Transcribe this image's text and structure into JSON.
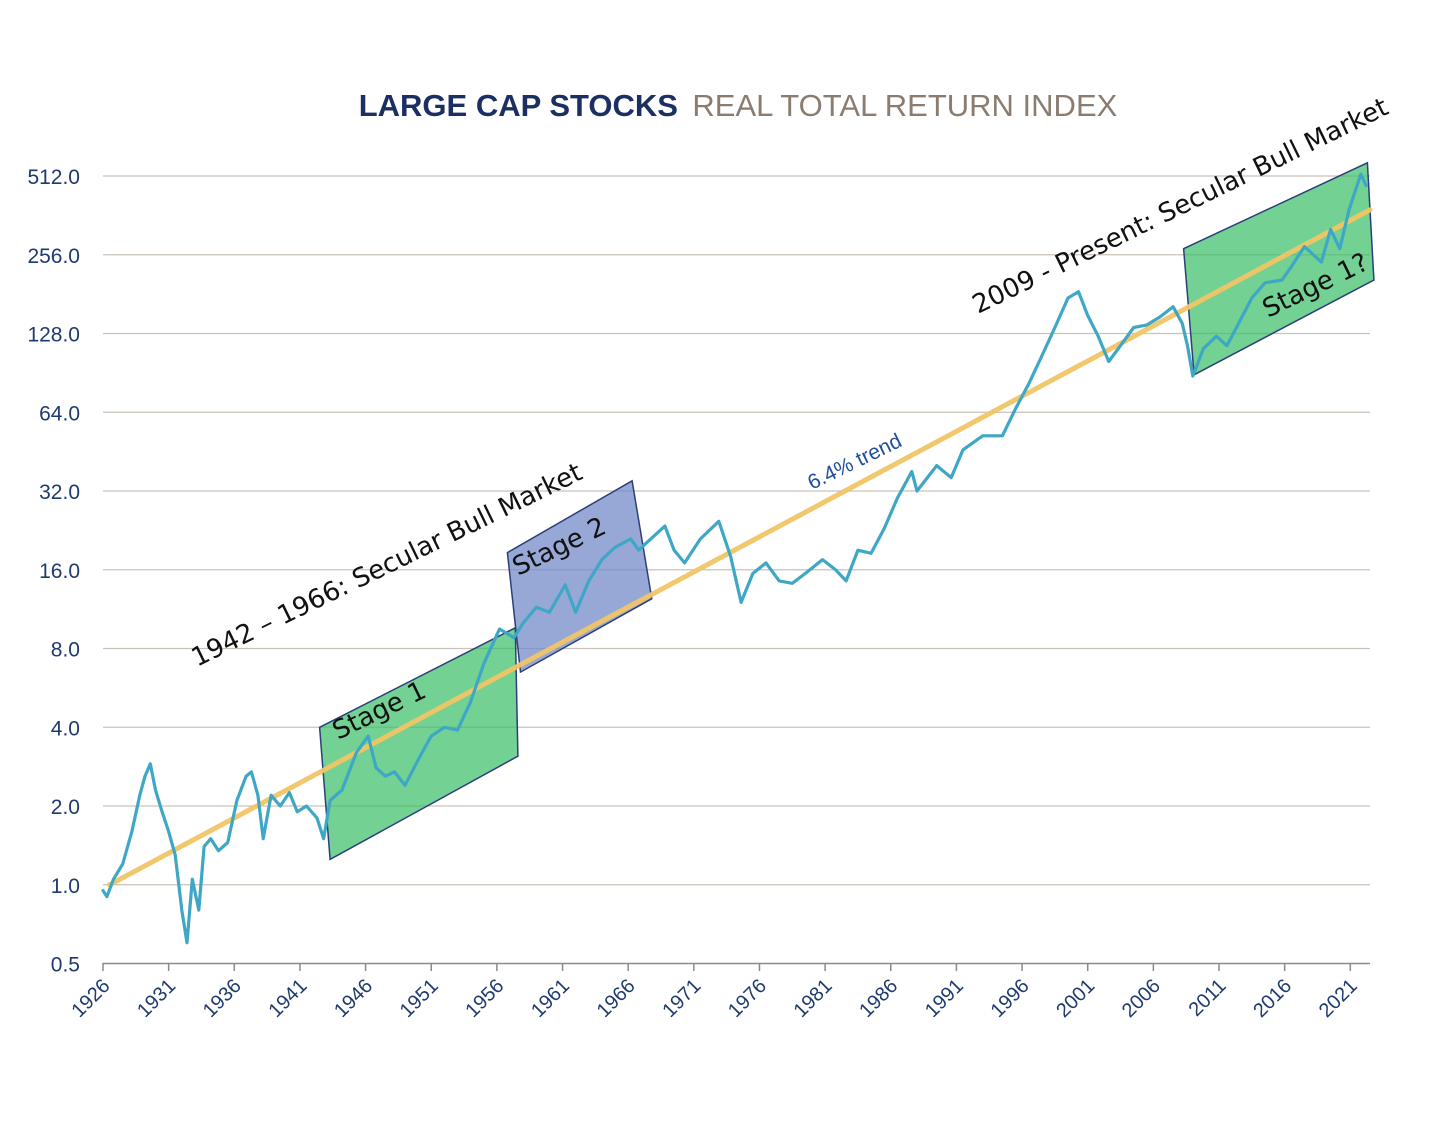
{
  "chart_data": {
    "type": "line",
    "title": "LARGE CAP STOCKS",
    "subtitle": "REAL TOTAL RETURN INDEX",
    "xlabel": "",
    "ylabel": "",
    "y_scale": "log2",
    "ylim": [
      0.5,
      600
    ],
    "xlim": [
      1926,
      2022.5
    ],
    "y_ticks": [
      "512.0",
      "256.0",
      "128.0",
      "64.0",
      "32.0",
      "16.0",
      "8.0",
      "4.0",
      "2.0",
      "1.0",
      "0.5"
    ],
    "x_ticks": [
      "1926",
      "1931",
      "1936",
      "1941",
      "1946",
      "1951",
      "1956",
      "1961",
      "1966",
      "1971",
      "1976",
      "1981",
      "1986",
      "1991",
      "1996",
      "2001",
      "2006",
      "2011",
      "2016",
      "2021"
    ],
    "grid": "horizontal",
    "series": [
      {
        "name": "",
        "color": "#3fa7c6",
        "points": [
          [
            1926.0,
            0.95
          ],
          [
            1926.3,
            0.9
          ],
          [
            1926.8,
            1.05
          ],
          [
            1927.5,
            1.2
          ],
          [
            1928.2,
            1.6
          ],
          [
            1928.8,
            2.2
          ],
          [
            1929.2,
            2.6
          ],
          [
            1929.6,
            2.9
          ],
          [
            1930.0,
            2.3
          ],
          [
            1930.5,
            1.9
          ],
          [
            1931.0,
            1.6
          ],
          [
            1931.5,
            1.3
          ],
          [
            1932.0,
            0.8
          ],
          [
            1932.4,
            0.6
          ],
          [
            1932.8,
            1.05
          ],
          [
            1933.3,
            0.8
          ],
          [
            1933.7,
            1.4
          ],
          [
            1934.2,
            1.5
          ],
          [
            1934.8,
            1.35
          ],
          [
            1935.5,
            1.45
          ],
          [
            1936.2,
            2.1
          ],
          [
            1936.9,
            2.6
          ],
          [
            1937.3,
            2.7
          ],
          [
            1937.8,
            2.2
          ],
          [
            1938.2,
            1.5
          ],
          [
            1938.8,
            2.2
          ],
          [
            1939.5,
            2.0
          ],
          [
            1940.2,
            2.25
          ],
          [
            1940.8,
            1.9
          ],
          [
            1941.5,
            2.0
          ],
          [
            1942.3,
            1.8
          ],
          [
            1942.8,
            1.5
          ],
          [
            1943.3,
            2.1
          ],
          [
            1944.2,
            2.3
          ],
          [
            1945.3,
            3.2
          ],
          [
            1946.2,
            3.7
          ],
          [
            1946.8,
            2.8
          ],
          [
            1947.5,
            2.6
          ],
          [
            1948.2,
            2.7
          ],
          [
            1949.0,
            2.4
          ],
          [
            1950.0,
            3.0
          ],
          [
            1951.0,
            3.7
          ],
          [
            1952.0,
            4.0
          ],
          [
            1953.0,
            3.9
          ],
          [
            1954.0,
            5.0
          ],
          [
            1955.0,
            7.0
          ],
          [
            1956.2,
            9.5
          ],
          [
            1957.3,
            8.8
          ],
          [
            1958.0,
            10.0
          ],
          [
            1959.0,
            11.5
          ],
          [
            1960.0,
            11.0
          ],
          [
            1961.2,
            14.0
          ],
          [
            1962.0,
            11.0
          ],
          [
            1963.0,
            14.5
          ],
          [
            1964.0,
            17.5
          ],
          [
            1965.0,
            19.5
          ],
          [
            1966.2,
            21.0
          ],
          [
            1966.8,
            19.0
          ],
          [
            1967.5,
            20.5
          ],
          [
            1968.8,
            23.5
          ],
          [
            1969.5,
            19.0
          ],
          [
            1970.3,
            17.0
          ],
          [
            1971.5,
            21.0
          ],
          [
            1972.9,
            24.5
          ],
          [
            1973.8,
            18.0
          ],
          [
            1974.6,
            12.0
          ],
          [
            1975.5,
            15.5
          ],
          [
            1976.5,
            17.0
          ],
          [
            1977.5,
            14.5
          ],
          [
            1978.5,
            14.2
          ],
          [
            1979.5,
            15.5
          ],
          [
            1980.8,
            17.5
          ],
          [
            1981.8,
            16.0
          ],
          [
            1982.6,
            14.5
          ],
          [
            1983.5,
            19.0
          ],
          [
            1984.5,
            18.5
          ],
          [
            1985.5,
            23.0
          ],
          [
            1986.5,
            30.0
          ],
          [
            1987.6,
            38.0
          ],
          [
            1988.0,
            32.0
          ],
          [
            1989.5,
            40.0
          ],
          [
            1990.6,
            36.0
          ],
          [
            1991.5,
            46.0
          ],
          [
            1993.0,
            52.0
          ],
          [
            1994.5,
            52.0
          ],
          [
            1995.5,
            66.0
          ],
          [
            1996.5,
            82.0
          ],
          [
            1997.5,
            105.0
          ],
          [
            1998.5,
            135.0
          ],
          [
            1999.5,
            175.0
          ],
          [
            2000.3,
            185.0
          ],
          [
            2001.0,
            150.0
          ],
          [
            2001.8,
            125.0
          ],
          [
            2002.6,
            100.0
          ],
          [
            2003.5,
            115.0
          ],
          [
            2004.5,
            135.0
          ],
          [
            2005.5,
            138.0
          ],
          [
            2006.5,
            148.0
          ],
          [
            2007.5,
            162.0
          ],
          [
            2008.2,
            140.0
          ],
          [
            2008.6,
            115.0
          ],
          [
            2009.0,
            88.0
          ],
          [
            2009.8,
            112.0
          ],
          [
            2010.8,
            125.0
          ],
          [
            2011.6,
            115.0
          ],
          [
            2012.5,
            140.0
          ],
          [
            2013.5,
            175.0
          ],
          [
            2014.5,
            200.0
          ],
          [
            2015.8,
            205.0
          ],
          [
            2016.5,
            230.0
          ],
          [
            2017.5,
            275.0
          ],
          [
            2018.8,
            240.0
          ],
          [
            2019.5,
            320.0
          ],
          [
            2020.2,
            270.0
          ],
          [
            2020.9,
            380.0
          ],
          [
            2021.8,
            520.0
          ],
          [
            2022.2,
            470.0
          ]
        ]
      },
      {
        "name": "6.4% trend",
        "color": "#f1c566",
        "points": [
          [
            1926.5,
            1.0
          ],
          [
            2022.5,
            380.0
          ]
        ]
      }
    ],
    "regions": [
      {
        "label": "Stage 1",
        "color": "#3cbf6a",
        "points": [
          [
            1942.5,
            4.0
          ],
          [
            1957.4,
            9.6
          ],
          [
            1957.6,
            3.1
          ],
          [
            1943.3,
            1.25
          ]
        ]
      },
      {
        "label": "Stage 2",
        "color": "#6f86c8",
        "points": [
          [
            1956.8,
            18.6
          ],
          [
            1966.3,
            35.0
          ],
          [
            1967.8,
            12.4
          ],
          [
            1957.8,
            6.5
          ]
        ]
      },
      {
        "label": "Stage 1?",
        "color": "#3cbf6a",
        "points": [
          [
            2008.3,
            270.0
          ],
          [
            2022.3,
            575.0
          ],
          [
            2022.8,
            205.0
          ],
          [
            2009.1,
            89.0
          ]
        ]
      }
    ],
    "annotations": [
      {
        "text": "1942 – 1966: Secular Bull Market",
        "kind": "label"
      },
      {
        "text": "2009 -  Present: Secular Bull Market",
        "kind": "label"
      },
      {
        "text": "6.4% trend",
        "kind": "trend"
      }
    ]
  }
}
